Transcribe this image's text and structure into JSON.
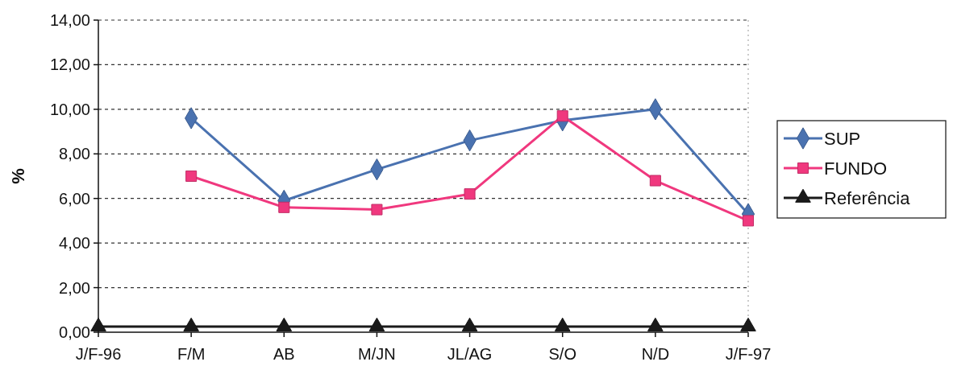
{
  "chart_data": {
    "type": "line",
    "ylabel": "%",
    "categories": [
      "J/F-96",
      "F/M",
      "AB",
      "M/JN",
      "JL/AG",
      "S/O",
      "N/D",
      "J/F-97"
    ],
    "series": [
      {
        "name": "SUP",
        "color": "#4a72b0",
        "marker": "diamond",
        "values": [
          null,
          9.6,
          5.9,
          7.3,
          8.6,
          9.5,
          10.0,
          5.3
        ]
      },
      {
        "name": "FUNDO",
        "color": "#f0387e",
        "marker": "square",
        "values": [
          null,
          7.0,
          5.6,
          5.5,
          6.2,
          9.7,
          6.8,
          5.0
        ]
      },
      {
        "name": "Referência",
        "color": "#1a1a1a",
        "marker": "triangle",
        "values": [
          0.25,
          0.25,
          0.25,
          0.25,
          0.25,
          0.25,
          0.25,
          0.25
        ]
      }
    ],
    "ylim": [
      0,
      14
    ],
    "yticks": [
      {
        "value": 0,
        "label": "0,00"
      },
      {
        "value": 2,
        "label": "2,00"
      },
      {
        "value": 4,
        "label": "4,00"
      },
      {
        "value": 6,
        "label": "6,00"
      },
      {
        "value": 8,
        "label": "8,00"
      },
      {
        "value": 10,
        "label": "10,00"
      },
      {
        "value": 12,
        "label": "12,00"
      },
      {
        "value": 14,
        "label": "14,00"
      }
    ],
    "grid": "y",
    "legend": "right",
    "line_style": "solid"
  }
}
